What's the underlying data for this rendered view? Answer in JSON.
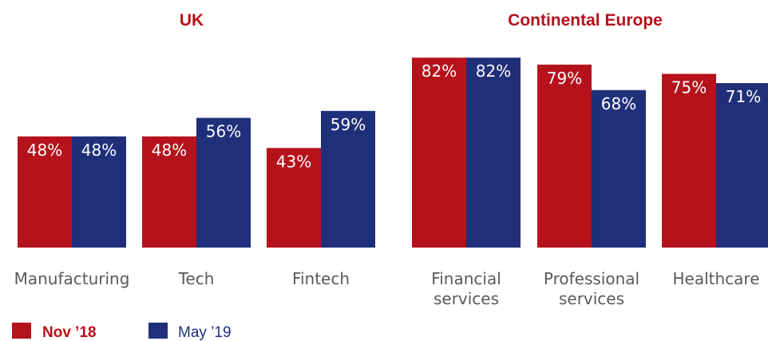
{
  "chart_data": [
    {
      "type": "bar",
      "title": "UK",
      "categories": [
        "Manufacturing",
        "Tech",
        "Fintech"
      ],
      "series": [
        {
          "name": "Nov ’18",
          "values": [
            48,
            48,
            43
          ]
        },
        {
          "name": "May ’19",
          "values": [
            48,
            56,
            59
          ]
        }
      ],
      "value_labels": [
        [
          "48%",
          "48%",
          "43%"
        ],
        [
          "48%",
          "56%",
          "59%"
        ]
      ],
      "ylim": [
        0,
        100
      ],
      "grid": false
    },
    {
      "type": "bar",
      "title": "Continental Europe",
      "categories": [
        "Financial services",
        "Professional services",
        "Healthcare"
      ],
      "category_lines": [
        [
          "Financial",
          "services"
        ],
        [
          "Professional",
          "services"
        ],
        [
          "Healthcare"
        ]
      ],
      "series": [
        {
          "name": "Nov ’18",
          "values": [
            82,
            79,
            75
          ]
        },
        {
          "name": "May ’19",
          "values": [
            82,
            68,
            71
          ]
        }
      ],
      "value_labels": [
        [
          "82%",
          "79%",
          "75%"
        ],
        [
          "82%",
          "68%",
          "71%"
        ]
      ],
      "ylim": [
        0,
        100
      ],
      "grid": false
    }
  ],
  "legend": {
    "placement": "bottom-left",
    "items": [
      {
        "label": "Nov ’18",
        "color": "#b5121b"
      },
      {
        "label": "May ’19",
        "color": "#1f2f7a"
      }
    ]
  },
  "colors": {
    "series": [
      "#b5121b",
      "#1f2f7a"
    ],
    "title": "#b5121b",
    "category_text": "#595959"
  }
}
